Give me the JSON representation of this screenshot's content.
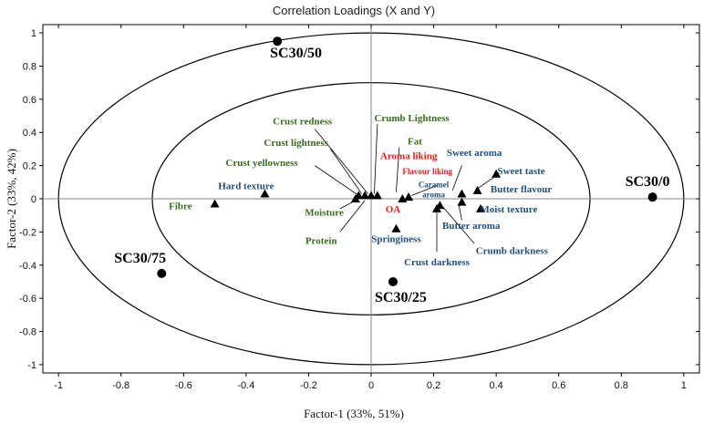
{
  "chart_data": {
    "type": "scatter",
    "title": "Correlation Loadings (X and Y)",
    "xlabel": "Factor-1 (33%, 51%)",
    "ylabel": "Factor-2 (33%, 42%)",
    "xlim": [
      -1.05,
      1.05
    ],
    "ylim": [
      -1.05,
      1.05
    ],
    "xticks": [
      "-1",
      "-0.8",
      "-0.6",
      "-0.4",
      "-0.2",
      "0",
      "0.2",
      "0.4",
      "0.6",
      "0.8",
      "1"
    ],
    "yticks": [
      "1",
      "0.8",
      "0.6",
      "0.4",
      "0.2",
      "0",
      "-0.2",
      "-0.4",
      "-0.6",
      "-0.8",
      "-1"
    ],
    "ellipses": [
      {
        "rx": 1.0,
        "ry": 1.0
      },
      {
        "rx": 0.7,
        "ry": 0.7
      }
    ],
    "colors": {
      "sample": "#000000",
      "x_attribute": "#3a6b1e",
      "y_attribute": "#1f4f7a",
      "liking": "#e0201a"
    },
    "samples": [
      {
        "name": "SC30/50",
        "x": -0.3,
        "y": 0.95
      },
      {
        "name": "SC30/0",
        "x": 0.9,
        "y": 0.01
      },
      {
        "name": "SC30/75",
        "x": -0.67,
        "y": -0.45
      },
      {
        "name": "SC30/25",
        "x": 0.07,
        "y": -0.5
      }
    ],
    "points": [
      {
        "x": -0.5,
        "y": -0.03
      },
      {
        "x": -0.34,
        "y": 0.03
      },
      {
        "x": -0.05,
        "y": 0.0
      },
      {
        "x": -0.04,
        "y": 0.02
      },
      {
        "x": -0.02,
        "y": 0.02
      },
      {
        "x": 0.0,
        "y": 0.02
      },
      {
        "x": 0.02,
        "y": 0.02
      },
      {
        "x": 0.1,
        "y": 0.0
      },
      {
        "x": 0.12,
        "y": 0.01
      },
      {
        "x": 0.08,
        "y": -0.18
      },
      {
        "x": 0.21,
        "y": -0.06
      },
      {
        "x": 0.22,
        "y": -0.04
      },
      {
        "x": 0.29,
        "y": 0.03
      },
      {
        "x": 0.29,
        "y": -0.02
      },
      {
        "x": 0.34,
        "y": 0.05
      },
      {
        "x": 0.35,
        "y": -0.06
      },
      {
        "x": 0.4,
        "y": 0.15
      }
    ],
    "labels": [
      {
        "text": "Crust redness",
        "x": -0.22,
        "y": 0.47,
        "group": "x_attribute"
      },
      {
        "text": "Crumb Lightness",
        "x": 0.13,
        "y": 0.49,
        "group": "x_attribute"
      },
      {
        "text": "Crust lightness",
        "x": -0.24,
        "y": 0.34,
        "group": "x_attribute"
      },
      {
        "text": "Fat",
        "x": 0.14,
        "y": 0.35,
        "group": "x_attribute"
      },
      {
        "text": "Crust yellowness",
        "x": -0.35,
        "y": 0.22,
        "group": "x_attribute"
      },
      {
        "text": "Moisture",
        "x": -0.15,
        "y": -0.08,
        "group": "x_attribute"
      },
      {
        "text": "Fibre",
        "x": -0.61,
        "y": -0.04,
        "group": "x_attribute"
      },
      {
        "text": "Protein",
        "x": -0.16,
        "y": -0.25,
        "group": "x_attribute"
      },
      {
        "text": "Hard texture",
        "x": -0.4,
        "y": 0.08,
        "group": "y_attribute"
      },
      {
        "text": "Sweet aroma",
        "x": 0.33,
        "y": 0.28,
        "group": "y_attribute"
      },
      {
        "text": "Sweet taste",
        "x": 0.48,
        "y": 0.17,
        "group": "y_attribute"
      },
      {
        "text": "Butter flavour",
        "x": 0.48,
        "y": 0.06,
        "group": "y_attribute"
      },
      {
        "text": "Moist texture",
        "x": 0.44,
        "y": -0.06,
        "group": "y_attribute"
      },
      {
        "text": "Butter aroma",
        "x": 0.32,
        "y": -0.16,
        "group": "y_attribute"
      },
      {
        "text": "Crumb darkness",
        "x": 0.45,
        "y": -0.31,
        "group": "y_attribute"
      },
      {
        "text": "Crust darkness",
        "x": 0.21,
        "y": -0.38,
        "group": "y_attribute"
      },
      {
        "text": "Springiness",
        "x": 0.08,
        "y": -0.24,
        "group": "y_attribute"
      },
      {
        "text": "Caramel",
        "x": 0.2,
        "y": 0.09,
        "group": "y_attribute"
      },
      {
        "text": "aroma",
        "x": 0.2,
        "y": 0.03,
        "group": "y_attribute"
      },
      {
        "text": "Aroma liking",
        "x": 0.12,
        "y": 0.26,
        "group": "liking"
      },
      {
        "text": "Flavour liking",
        "x": 0.18,
        "y": 0.17,
        "group": "liking"
      },
      {
        "text": "OA",
        "x": 0.07,
        "y": -0.06,
        "group": "liking"
      }
    ],
    "leaders": [
      {
        "from": [
          -0.18,
          0.42
        ],
        "to": [
          -0.01,
          0.03
        ]
      },
      {
        "from": [
          0.02,
          0.45
        ],
        "to": [
          0.01,
          0.03
        ]
      },
      {
        "from": [
          -0.13,
          0.3
        ],
        "to": [
          -0.03,
          0.03
        ]
      },
      {
        "from": [
          0.09,
          0.31
        ],
        "to": [
          0.08,
          0.04
        ]
      },
      {
        "from": [
          -0.18,
          0.2
        ],
        "to": [
          -0.04,
          0.02
        ]
      },
      {
        "from": [
          -0.1,
          -0.06
        ],
        "to": [
          -0.04,
          0.0
        ]
      },
      {
        "from": [
          -0.1,
          -0.2
        ],
        "to": [
          -0.02,
          -0.01
        ]
      },
      {
        "from": [
          0.29,
          0.2
        ],
        "to": [
          0.26,
          0.05
        ]
      },
      {
        "from": [
          0.4,
          0.14
        ],
        "to": [
          0.34,
          0.06
        ]
      },
      {
        "from": [
          0.29,
          -0.13
        ],
        "to": [
          0.28,
          -0.03
        ]
      },
      {
        "from": [
          0.33,
          -0.27
        ],
        "to": [
          0.23,
          -0.05
        ]
      },
      {
        "from": [
          0.21,
          -0.32
        ],
        "to": [
          0.21,
          -0.07
        ]
      },
      {
        "from": [
          0.21,
          0.08
        ],
        "to": [
          0.13,
          0.02
        ]
      }
    ]
  }
}
